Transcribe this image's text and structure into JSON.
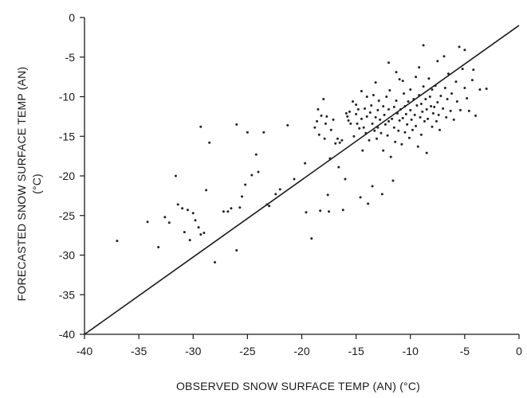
{
  "chart_data": {
    "type": "scatter",
    "title": "",
    "xlabel": "OBSERVED SNOW SURFACE TEMP (AN) (°C)",
    "ylabel_line1": "FORECASTED SNOW SURFACE TEMP (AN)",
    "ylabel_line2": "(°C)",
    "xlim": [
      -40,
      0
    ],
    "ylim": [
      -40,
      0
    ],
    "x_ticks": [
      -40,
      -35,
      -30,
      -25,
      -20,
      -15,
      -10,
      -5,
      0
    ],
    "y_ticks": [
      0,
      -5,
      -10,
      -15,
      -20,
      -25,
      -30,
      -35,
      -40
    ],
    "x_tick_labels": [
      "-40",
      "-35",
      "-30",
      "-25",
      "-20",
      "-15",
      "-10",
      "-5",
      "0"
    ],
    "y_tick_labels": [
      "0",
      "-5",
      "-10",
      "-15",
      "-20",
      "-25",
      "-30",
      "-35",
      "-40"
    ],
    "grid": false,
    "reference_line": {
      "name": "1:1 line",
      "points": [
        [
          -40,
          -40
        ],
        [
          0,
          -1
        ]
      ]
    },
    "series": [
      {
        "marker_color": "#222222",
        "points": [
          [
            -37.0,
            -28.2
          ],
          [
            -34.2,
            -25.8
          ],
          [
            -33.2,
            -29.0
          ],
          [
            -32.6,
            -25.2
          ],
          [
            -32.2,
            -25.9
          ],
          [
            -31.6,
            -20.0
          ],
          [
            -31.4,
            -23.6
          ],
          [
            -31.0,
            -24.1
          ],
          [
            -30.8,
            -27.1
          ],
          [
            -30.5,
            -24.3
          ],
          [
            -30.3,
            -28.1
          ],
          [
            -30.0,
            -24.7
          ],
          [
            -29.8,
            -25.6
          ],
          [
            -29.5,
            -26.5
          ],
          [
            -29.3,
            -27.4
          ],
          [
            -29.0,
            -27.2
          ],
          [
            -28.8,
            -21.8
          ],
          [
            -29.3,
            -13.8
          ],
          [
            -28.5,
            -15.8
          ],
          [
            -28.0,
            -30.9
          ],
          [
            -27.2,
            -24.5
          ],
          [
            -26.8,
            -24.5
          ],
          [
            -26.5,
            -24.1
          ],
          [
            -26.0,
            -29.4
          ],
          [
            -25.7,
            -24.0
          ],
          [
            -25.5,
            -22.6
          ],
          [
            -25.2,
            -21.1
          ],
          [
            -26.0,
            -13.5
          ],
          [
            -25.0,
            -14.5
          ],
          [
            -24.6,
            -19.9
          ],
          [
            -24.2,
            -17.3
          ],
          [
            -24.0,
            -19.5
          ],
          [
            -23.5,
            -14.5
          ],
          [
            -23.2,
            -23.6
          ],
          [
            -23.0,
            -23.8
          ],
          [
            -22.4,
            -22.3
          ],
          [
            -22.0,
            -21.7
          ],
          [
            -21.3,
            -13.6
          ],
          [
            -20.7,
            -20.4
          ],
          [
            -19.7,
            -18.4
          ],
          [
            -19.6,
            -24.6
          ],
          [
            -19.1,
            -27.9
          ],
          [
            -18.8,
            -13.9
          ],
          [
            -18.6,
            -13.1
          ],
          [
            -18.5,
            -11.6
          ],
          [
            -18.4,
            -14.8
          ],
          [
            -18.3,
            -24.4
          ],
          [
            -18.2,
            -12.4
          ],
          [
            -18.0,
            -10.3
          ],
          [
            -17.9,
            -15.3
          ],
          [
            -17.8,
            -13.4
          ],
          [
            -17.7,
            -12.5
          ],
          [
            -17.6,
            -22.4
          ],
          [
            -17.5,
            -24.5
          ],
          [
            -17.4,
            -17.8
          ],
          [
            -17.3,
            -14.2
          ],
          [
            -17.1,
            -12.9
          ],
          [
            -16.9,
            -15.9
          ],
          [
            -16.7,
            -15.3
          ],
          [
            -16.6,
            -18.9
          ],
          [
            -16.5,
            -15.8
          ],
          [
            -16.3,
            -15.5
          ],
          [
            -16.2,
            -24.3
          ],
          [
            -16.0,
            -20.4
          ],
          [
            -15.9,
            -12.1
          ],
          [
            -15.8,
            -12.5
          ],
          [
            -15.7,
            -13.0
          ],
          [
            -15.6,
            -11.9
          ],
          [
            -15.5,
            -13.4
          ],
          [
            -15.3,
            -10.6
          ],
          [
            -15.2,
            -15.0
          ],
          [
            -15.0,
            -11.0
          ],
          [
            -15.0,
            -12.2
          ],
          [
            -14.9,
            -13.4
          ],
          [
            -14.8,
            -11.6
          ],
          [
            -14.7,
            -14.0
          ],
          [
            -14.6,
            -22.7
          ],
          [
            -14.5,
            -9.3
          ],
          [
            -14.5,
            -12.8
          ],
          [
            -14.4,
            -16.8
          ],
          [
            -14.3,
            -13.9
          ],
          [
            -14.2,
            -11.5
          ],
          [
            -14.1,
            -14.6
          ],
          [
            -14.0,
            -10.0
          ],
          [
            -14.0,
            -12.5
          ],
          [
            -13.9,
            -23.5
          ],
          [
            -13.8,
            -15.5
          ],
          [
            -13.7,
            -12.0
          ],
          [
            -13.6,
            -11.1
          ],
          [
            -13.5,
            -21.3
          ],
          [
            -13.5,
            -13.4
          ],
          [
            -13.4,
            -9.8
          ],
          [
            -13.3,
            -14.3
          ],
          [
            -13.2,
            -12.6
          ],
          [
            -13.1,
            -15.3
          ],
          [
            -13.0,
            -11.7
          ],
          [
            -13.0,
            -13.9
          ],
          [
            -12.9,
            -10.5
          ],
          [
            -12.8,
            -12.9
          ],
          [
            -12.7,
            -14.6
          ],
          [
            -12.6,
            -22.3
          ],
          [
            -12.5,
            -16.8
          ],
          [
            -12.5,
            -11.2
          ],
          [
            -12.4,
            -12.3
          ],
          [
            -12.3,
            -13.5
          ],
          [
            -12.2,
            -10.0
          ],
          [
            -12.1,
            -14.9
          ],
          [
            -12.0,
            -11.6
          ],
          [
            -12.0,
            -13.1
          ],
          [
            -11.9,
            -9.2
          ],
          [
            -11.8,
            -17.6
          ],
          [
            -11.7,
            -12.8
          ],
          [
            -11.6,
            -20.6
          ],
          [
            -11.5,
            -11.3
          ],
          [
            -11.5,
            -13.9
          ],
          [
            -11.4,
            -15.7
          ],
          [
            -11.3,
            -10.5
          ],
          [
            -11.2,
            -12.1
          ],
          [
            -11.1,
            -14.3
          ],
          [
            -11.0,
            -7.8
          ],
          [
            -11.0,
            -13.0
          ],
          [
            -10.9,
            -11.6
          ],
          [
            -10.8,
            -16.0
          ],
          [
            -10.7,
            -12.7
          ],
          [
            -10.6,
            -9.6
          ],
          [
            -10.5,
            -11.2
          ],
          [
            -10.5,
            -14.5
          ],
          [
            -10.4,
            -12.2
          ],
          [
            -10.3,
            -13.5
          ],
          [
            -10.2,
            -10.6
          ],
          [
            -10.1,
            -15.2
          ],
          [
            -10.0,
            -11.7
          ],
          [
            -10.0,
            -9.1
          ],
          [
            -9.9,
            -12.9
          ],
          [
            -9.8,
            -14.2
          ],
          [
            -9.7,
            -10.3
          ],
          [
            -9.6,
            -12.3
          ],
          [
            -9.5,
            -7.5
          ],
          [
            -9.5,
            -13.7
          ],
          [
            -9.4,
            -11.1
          ],
          [
            -9.3,
            -16.3
          ],
          [
            -9.2,
            -9.8
          ],
          [
            -9.1,
            -12.6
          ],
          [
            -9.0,
            -10.9
          ],
          [
            -9.0,
            -14.8
          ],
          [
            -8.9,
            -11.9
          ],
          [
            -8.8,
            -8.7
          ],
          [
            -8.7,
            -13.1
          ],
          [
            -8.6,
            -10.3
          ],
          [
            -8.5,
            -17.1
          ],
          [
            -8.5,
            -11.6
          ],
          [
            -8.4,
            -12.8
          ],
          [
            -8.3,
            -7.7
          ],
          [
            -8.2,
            -10.0
          ],
          [
            -8.1,
            -11.2
          ],
          [
            -8.0,
            -13.8
          ],
          [
            -8.0,
            -9.1
          ],
          [
            -7.9,
            -12.1
          ],
          [
            -7.8,
            -11.3
          ],
          [
            -7.7,
            -8.6
          ],
          [
            -7.6,
            -13.1
          ],
          [
            -7.5,
            -10.7
          ],
          [
            -7.4,
            -12.3
          ],
          [
            -7.3,
            -14.2
          ],
          [
            -7.2,
            -9.9
          ],
          [
            -7.0,
            -11.5
          ],
          [
            -6.8,
            -8.9
          ],
          [
            -6.7,
            -12.6
          ],
          [
            -6.6,
            -10.3
          ],
          [
            -6.5,
            -7.1
          ],
          [
            -6.3,
            -11.8
          ],
          [
            -6.2,
            -9.6
          ],
          [
            -6.0,
            -12.9
          ],
          [
            -5.8,
            -8.1
          ],
          [
            -5.7,
            -10.6
          ],
          [
            -5.5,
            -3.7
          ],
          [
            -5.4,
            -11.7
          ],
          [
            -5.2,
            -6.5
          ],
          [
            -5.0,
            -8.9
          ],
          [
            -4.8,
            -10.2
          ],
          [
            -4.6,
            -11.8
          ],
          [
            -4.3,
            -7.9
          ],
          [
            -4.0,
            -12.4
          ],
          [
            -3.6,
            -9.1
          ],
          [
            -3.0,
            -9.0
          ],
          [
            -8.8,
            -3.5
          ],
          [
            -5.0,
            -4.1
          ],
          [
            -4.2,
            -6.6
          ],
          [
            -7.5,
            -5.5
          ],
          [
            -12.0,
            -5.7
          ],
          [
            -9.2,
            -6.3
          ],
          [
            -11.3,
            -6.9
          ],
          [
            -13.2,
            -8.2
          ],
          [
            -10.7,
            -8.0
          ],
          [
            -6.9,
            -4.9
          ]
        ]
      }
    ]
  }
}
